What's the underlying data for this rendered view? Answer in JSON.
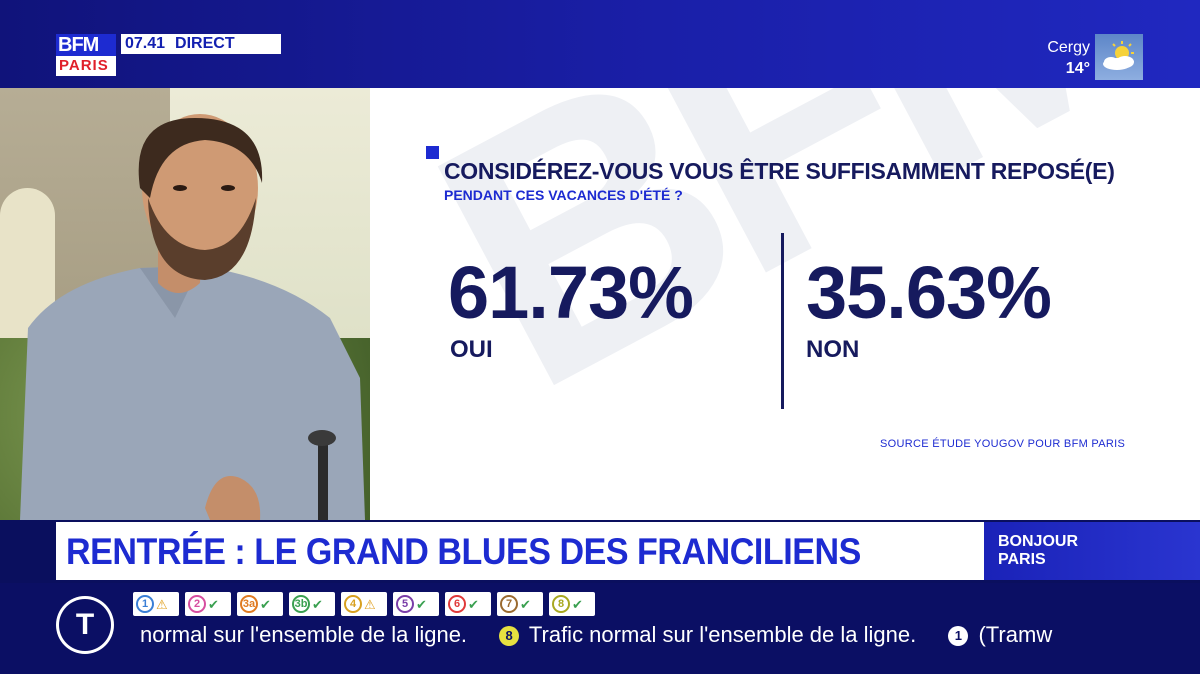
{
  "channel": {
    "logo_top": "BFM",
    "logo_bottom": "PARIS",
    "time": "07.41",
    "live": "DIRECT"
  },
  "weather": {
    "city": "Cergy",
    "temp": "14°",
    "icon": "sun-cloud-icon"
  },
  "poll": {
    "question": "CONSIDÉREZ-VOUS VOUS ÊTRE SUFFISAMMENT REPOSÉ(E)",
    "subquestion": "PENDANT CES VACANCES D'ÉTÉ ?",
    "yes_value": "61.73%",
    "yes_label": "OUI",
    "no_value": "35.63%",
    "no_label": "NON",
    "source": "SOURCE  ÉTUDE YOUGOV POUR BFM PARIS",
    "watermark": "BFM"
  },
  "headline": "RENTRÉE : LE GRAND BLUES DES FRANCILIENS",
  "show": {
    "line1": "BONJOUR",
    "line2": "PARIS"
  },
  "transit": {
    "badge": "T",
    "lines": [
      {
        "num": "1",
        "color": "#3a7fd6",
        "status": "warning"
      },
      {
        "num": "2",
        "color": "#d64ea0",
        "status": "ok"
      },
      {
        "num": "3a",
        "color": "#e07b22",
        "status": "ok"
      },
      {
        "num": "3b",
        "color": "#3aa050",
        "status": "ok"
      },
      {
        "num": "4",
        "color": "#d8a020",
        "status": "warning"
      },
      {
        "num": "5",
        "color": "#7a3ea8",
        "status": "ok"
      },
      {
        "num": "6",
        "color": "#e03a3a",
        "status": "ok"
      },
      {
        "num": "7",
        "color": "#9a6a30",
        "status": "ok"
      },
      {
        "num": "8",
        "color": "#a8a820",
        "status": "ok"
      }
    ],
    "ticker_part1": "normal sur l'ensemble de la ligne.",
    "ticker_line_a": "8",
    "ticker_part2": "Trafic normal sur l'ensemble de la ligne.",
    "ticker_line_b": "1",
    "ticker_part3": "(Tramw"
  }
}
